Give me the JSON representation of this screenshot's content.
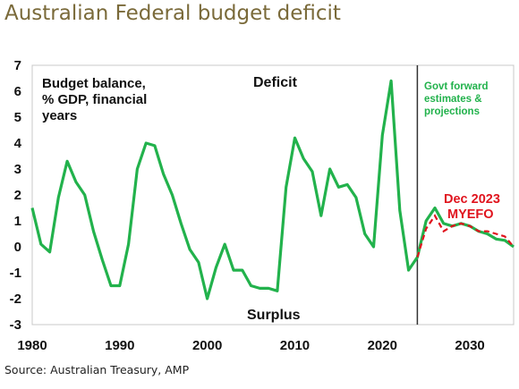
{
  "title": "Australian Federal budget deficit",
  "source": "Source: Australian Treasury, AMP",
  "colors": {
    "title": "#7a6a3a",
    "actual": "#22b24c",
    "myefo": "#e0141e",
    "plot_border": "#c8c8c8"
  },
  "chart_data": {
    "type": "line",
    "ylabel_lines": [
      "Budget balance,",
      "% GDP, financial",
      "years"
    ],
    "xlim": [
      1980,
      2035
    ],
    "ylim": [
      -3,
      7
    ],
    "x_ticks": [
      1980,
      1990,
      2000,
      2010,
      2020,
      2030
    ],
    "y_ticks": [
      7,
      6,
      5,
      4,
      3,
      2,
      1,
      0,
      -1,
      -2,
      -3
    ],
    "divider_x": 2024,
    "grid": false,
    "annotations": {
      "deficit": "Deficit",
      "surplus": "Surplus",
      "forward_lines": [
        "Govt forward",
        "estimates &",
        "projections"
      ],
      "myefo_lines": [
        "Dec 2023",
        "MYEFO"
      ]
    },
    "series": [
      {
        "style": "solid",
        "x": [
          1980,
          1981,
          1982,
          1983,
          1984,
          1985,
          1986,
          1987,
          1988,
          1989,
          1990,
          1991,
          1992,
          1993,
          1994,
          1995,
          1996,
          1997,
          1998,
          1999,
          2000,
          2001,
          2002,
          2003,
          2004,
          2005,
          2006,
          2007,
          2008,
          2009,
          2010,
          2011,
          2012,
          2013,
          2014,
          2015,
          2016,
          2017,
          2018,
          2019,
          2020,
          2021,
          2022,
          2023,
          2024,
          2025,
          2026,
          2027,
          2028,
          2029,
          2030,
          2031,
          2032,
          2033,
          2034,
          2035
        ],
        "y": [
          1.5,
          0.1,
          -0.2,
          1.9,
          3.3,
          2.5,
          2.0,
          0.6,
          -0.5,
          -1.5,
          -1.5,
          0.1,
          3.0,
          4.0,
          3.9,
          2.8,
          2.0,
          0.9,
          -0.1,
          -0.6,
          -2.0,
          -0.8,
          0.1,
          -0.9,
          -0.9,
          -1.5,
          -1.6,
          -1.6,
          -1.7,
          2.3,
          4.2,
          3.4,
          2.9,
          1.2,
          3.0,
          2.3,
          2.4,
          1.9,
          0.5,
          0.0,
          4.3,
          6.4,
          1.4,
          -0.9,
          -0.4,
          1.0,
          1.5,
          0.9,
          0.8,
          0.9,
          0.8,
          0.6,
          0.5,
          0.3,
          0.25,
          0.0
        ]
      },
      {
        "style": "dashed",
        "x": [
          2024,
          2025,
          2026,
          2027,
          2028,
          2029,
          2030,
          2031,
          2032,
          2033,
          2034,
          2035
        ],
        "y": [
          -0.4,
          0.7,
          1.2,
          0.6,
          0.8,
          0.9,
          0.8,
          0.6,
          0.6,
          0.5,
          0.4,
          0.0
        ]
      }
    ]
  }
}
